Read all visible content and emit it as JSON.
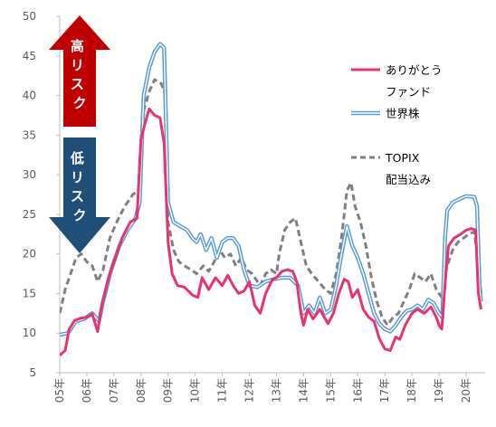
{
  "chart_data": {
    "type": "line",
    "y_ticks": [
      5,
      10,
      15,
      20,
      25,
      30,
      35,
      40,
      45,
      50
    ],
    "ylim": [
      5,
      50
    ],
    "x_ticks": [
      "05年",
      "06年",
      "07年",
      "08年",
      "09年",
      "10年",
      "11年",
      "12年",
      "13年",
      "14年",
      "15年",
      "16年",
      "17年",
      "18年",
      "19年",
      "20年"
    ],
    "xlim": [
      2005,
      2020.7
    ],
    "grid": false,
    "legend_position": "right",
    "annotations": {
      "high_risk": "高リスク",
      "low_risk": "低リスク"
    },
    "series": [
      {
        "name": "ありがとうファンド",
        "color": "#E8336E",
        "style": "solid",
        "points": [
          [
            2005.0,
            7.2
          ],
          [
            2005.2,
            7.8
          ],
          [
            2005.35,
            10.5
          ],
          [
            2005.55,
            11.6
          ],
          [
            2005.8,
            11.9
          ],
          [
            2006.0,
            12.0
          ],
          [
            2006.2,
            12.4
          ],
          [
            2006.4,
            10.2
          ],
          [
            2006.55,
            13.5
          ],
          [
            2006.8,
            17.0
          ],
          [
            2007.0,
            19.0
          ],
          [
            2007.3,
            22.0
          ],
          [
            2007.6,
            24.0
          ],
          [
            2007.85,
            24.5
          ],
          [
            2008.0,
            34.5
          ],
          [
            2008.15,
            36.5
          ],
          [
            2008.3,
            38.3
          ],
          [
            2008.5,
            37.5
          ],
          [
            2008.7,
            37.2
          ],
          [
            2008.85,
            34.0
          ],
          [
            2009.0,
            21.5
          ],
          [
            2009.15,
            17.5
          ],
          [
            2009.35,
            16.0
          ],
          [
            2009.6,
            15.8
          ],
          [
            2009.9,
            14.8
          ],
          [
            2010.1,
            14.5
          ],
          [
            2010.25,
            17.0
          ],
          [
            2010.5,
            15.5
          ],
          [
            2010.75,
            17.0
          ],
          [
            2011.0,
            16.0
          ],
          [
            2011.2,
            17.3
          ],
          [
            2011.4,
            16.0
          ],
          [
            2011.6,
            15.0
          ],
          [
            2011.8,
            15.3
          ],
          [
            2012.0,
            16.5
          ],
          [
            2012.2,
            13.5
          ],
          [
            2012.4,
            12.5
          ],
          [
            2012.6,
            15.0
          ],
          [
            2012.85,
            16.8
          ],
          [
            2013.0,
            17.0
          ],
          [
            2013.2,
            17.8
          ],
          [
            2013.4,
            18.0
          ],
          [
            2013.6,
            17.8
          ],
          [
            2013.75,
            16.5
          ],
          [
            2013.9,
            12.5
          ],
          [
            2014.0,
            11.0
          ],
          [
            2014.15,
            13.0
          ],
          [
            2014.35,
            11.8
          ],
          [
            2014.6,
            13.0
          ],
          [
            2014.9,
            11.2
          ],
          [
            2015.1,
            12.5
          ],
          [
            2015.3,
            15.0
          ],
          [
            2015.5,
            16.8
          ],
          [
            2015.65,
            16.5
          ],
          [
            2015.8,
            14.5
          ],
          [
            2016.0,
            15.5
          ],
          [
            2016.2,
            13.0
          ],
          [
            2016.4,
            12.0
          ],
          [
            2016.6,
            11.5
          ],
          [
            2016.8,
            9.3
          ],
          [
            2017.0,
            8.0
          ],
          [
            2017.2,
            7.8
          ],
          [
            2017.4,
            9.5
          ],
          [
            2017.55,
            9.2
          ],
          [
            2017.75,
            11.0
          ],
          [
            2018.0,
            12.5
          ],
          [
            2018.2,
            13.0
          ],
          [
            2018.45,
            12.5
          ],
          [
            2018.7,
            13.3
          ],
          [
            2018.9,
            12.0
          ],
          [
            2019.0,
            11.0
          ],
          [
            2019.1,
            10.5
          ],
          [
            2019.25,
            17.5
          ],
          [
            2019.35,
            21.0
          ],
          [
            2019.55,
            22.0
          ],
          [
            2019.8,
            22.5
          ],
          [
            2020.0,
            23.0
          ],
          [
            2020.2,
            23.2
          ],
          [
            2020.35,
            23.0
          ],
          [
            2020.45,
            15.0
          ],
          [
            2020.55,
            13.0
          ]
        ]
      },
      {
        "name": "世界株",
        "color": "#5B9BD5",
        "style": "double",
        "points": [
          [
            2005.0,
            9.8
          ],
          [
            2005.3,
            10.0
          ],
          [
            2005.6,
            11.5
          ],
          [
            2005.9,
            11.8
          ],
          [
            2006.2,
            12.5
          ],
          [
            2006.45,
            11.5
          ],
          [
            2006.6,
            14.0
          ],
          [
            2006.9,
            18.0
          ],
          [
            2007.2,
            21.0
          ],
          [
            2007.5,
            23.0
          ],
          [
            2007.8,
            24.5
          ],
          [
            2007.95,
            26.5
          ],
          [
            2008.1,
            40.0
          ],
          [
            2008.3,
            43.5
          ],
          [
            2008.5,
            45.5
          ],
          [
            2008.7,
            46.5
          ],
          [
            2008.85,
            46.0
          ],
          [
            2009.0,
            26.5
          ],
          [
            2009.2,
            24.0
          ],
          [
            2009.45,
            23.5
          ],
          [
            2009.7,
            23.0
          ],
          [
            2009.9,
            22.0
          ],
          [
            2010.05,
            21.5
          ],
          [
            2010.2,
            22.5
          ],
          [
            2010.4,
            20.5
          ],
          [
            2010.6,
            22.0
          ],
          [
            2010.8,
            19.5
          ],
          [
            2011.0,
            21.5
          ],
          [
            2011.2,
            22.0
          ],
          [
            2011.4,
            22.0
          ],
          [
            2011.6,
            21.0
          ],
          [
            2011.8,
            18.0
          ],
          [
            2012.0,
            16.0
          ],
          [
            2012.3,
            15.8
          ],
          [
            2012.6,
            16.5
          ],
          [
            2012.9,
            16.8
          ],
          [
            2013.2,
            17.0
          ],
          [
            2013.5,
            17.0
          ],
          [
            2013.8,
            16.0
          ],
          [
            2014.0,
            12.5
          ],
          [
            2014.2,
            13.5
          ],
          [
            2014.4,
            12.5
          ],
          [
            2014.6,
            14.5
          ],
          [
            2014.8,
            12.5
          ],
          [
            2015.0,
            13.0
          ],
          [
            2015.2,
            16.0
          ],
          [
            2015.4,
            20.0
          ],
          [
            2015.6,
            23.5
          ],
          [
            2015.8,
            21.0
          ],
          [
            2016.0,
            19.5
          ],
          [
            2016.2,
            17.5
          ],
          [
            2016.4,
            15.0
          ],
          [
            2016.6,
            12.5
          ],
          [
            2016.8,
            11.2
          ],
          [
            2017.0,
            10.5
          ],
          [
            2017.2,
            10.2
          ],
          [
            2017.4,
            11.0
          ],
          [
            2017.6,
            12.0
          ],
          [
            2017.8,
            12.8
          ],
          [
            2018.0,
            13.0
          ],
          [
            2018.2,
            13.5
          ],
          [
            2018.4,
            13.0
          ],
          [
            2018.6,
            14.2
          ],
          [
            2018.8,
            13.8
          ],
          [
            2019.0,
            12.5
          ],
          [
            2019.12,
            12.0
          ],
          [
            2019.22,
            22.0
          ],
          [
            2019.3,
            25.5
          ],
          [
            2019.5,
            26.5
          ],
          [
            2019.8,
            27.0
          ],
          [
            2020.0,
            27.3
          ],
          [
            2020.3,
            27.2
          ],
          [
            2020.4,
            26.0
          ],
          [
            2020.5,
            15.5
          ],
          [
            2020.55,
            14.0
          ]
        ]
      },
      {
        "name": "TOPIX配当込み",
        "color": "#7F7F7F",
        "style": "dashed",
        "points": [
          [
            2005.0,
            12.5
          ],
          [
            2005.2,
            15.5
          ],
          [
            2005.4,
            17.5
          ],
          [
            2005.6,
            19.5
          ],
          [
            2005.8,
            20.0
          ],
          [
            2006.0,
            19.0
          ],
          [
            2006.2,
            18.5
          ],
          [
            2006.4,
            16.5
          ],
          [
            2006.6,
            18.0
          ],
          [
            2006.85,
            22.0
          ],
          [
            2007.1,
            24.0
          ],
          [
            2007.4,
            26.0
          ],
          [
            2007.7,
            27.5
          ],
          [
            2007.9,
            28.0
          ],
          [
            2008.05,
            37.5
          ],
          [
            2008.3,
            40.5
          ],
          [
            2008.5,
            42.0
          ],
          [
            2008.75,
            41.5
          ],
          [
            2008.9,
            40.0
          ],
          [
            2009.0,
            24.0
          ],
          [
            2009.2,
            20.5
          ],
          [
            2009.4,
            19.0
          ],
          [
            2009.6,
            18.5
          ],
          [
            2009.85,
            18.0
          ],
          [
            2010.05,
            17.5
          ],
          [
            2010.3,
            18.5
          ],
          [
            2010.5,
            17.8
          ],
          [
            2010.7,
            19.0
          ],
          [
            2010.9,
            20.5
          ],
          [
            2011.1,
            19.5
          ],
          [
            2011.3,
            20.0
          ],
          [
            2011.5,
            18.5
          ],
          [
            2011.7,
            19.5
          ],
          [
            2011.9,
            18.0
          ],
          [
            2012.1,
            17.5
          ],
          [
            2012.4,
            16.0
          ],
          [
            2012.6,
            17.5
          ],
          [
            2012.8,
            18.0
          ],
          [
            2013.0,
            17.5
          ],
          [
            2013.1,
            20.0
          ],
          [
            2013.3,
            23.0
          ],
          [
            2013.5,
            24.0
          ],
          [
            2013.7,
            24.5
          ],
          [
            2013.9,
            21.5
          ],
          [
            2014.1,
            18.5
          ],
          [
            2014.3,
            17.5
          ],
          [
            2014.55,
            16.5
          ],
          [
            2014.8,
            15.5
          ],
          [
            2015.0,
            15.0
          ],
          [
            2015.2,
            17.5
          ],
          [
            2015.4,
            22.0
          ],
          [
            2015.6,
            28.0
          ],
          [
            2015.75,
            29.0
          ],
          [
            2015.9,
            26.0
          ],
          [
            2016.1,
            24.0
          ],
          [
            2016.3,
            21.0
          ],
          [
            2016.5,
            17.0
          ],
          [
            2016.7,
            14.0
          ],
          [
            2016.9,
            12.0
          ],
          [
            2017.1,
            11.0
          ],
          [
            2017.3,
            12.0
          ],
          [
            2017.5,
            12.5
          ],
          [
            2017.7,
            14.0
          ],
          [
            2017.9,
            15.5
          ],
          [
            2018.1,
            17.5
          ],
          [
            2018.3,
            17.0
          ],
          [
            2018.5,
            16.5
          ],
          [
            2018.7,
            17.5
          ],
          [
            2018.9,
            15.5
          ],
          [
            2019.1,
            14.5
          ],
          [
            2019.2,
            17.0
          ],
          [
            2019.3,
            18.5
          ],
          [
            2019.5,
            20.5
          ],
          [
            2019.7,
            21.5
          ],
          [
            2019.9,
            22.0
          ],
          [
            2020.1,
            22.5
          ],
          [
            2020.3,
            22.8
          ],
          [
            2020.45,
            19.0
          ],
          [
            2020.55,
            15.0
          ]
        ]
      }
    ]
  }
}
